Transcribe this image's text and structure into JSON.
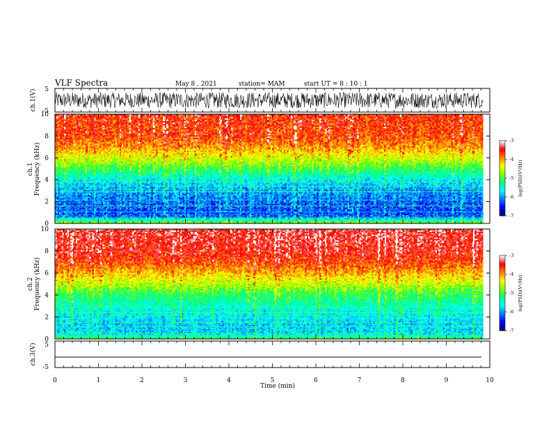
{
  "header": {
    "title": "VLF Spectra",
    "date": "May 8 , 2021",
    "station": "station= MAM",
    "start": "start  UT =   8 : 10 : 1"
  },
  "chart_data": [
    {
      "type": "line",
      "panel": "ch1-waveform",
      "ylabel": "ch.1(V)",
      "ylim": [
        -5,
        5
      ],
      "yticks": [
        "5",
        "-5"
      ],
      "xlim": [
        0,
        10
      ],
      "description": "dense black noise waveform, amplitude roughly ±3 V"
    },
    {
      "type": "heatmap",
      "panel": "ch1-spectrogram",
      "ylabel": "ch.1\nFrequency (kHz)",
      "ylabel_line1": "ch.1",
      "ylabel_line2": "Frequency (kHz)",
      "ylim": [
        0,
        10
      ],
      "yticks": [
        "0",
        "2",
        "4",
        "6",
        "8",
        "10"
      ],
      "xlim": [
        0,
        9.85
      ],
      "colorbar": {
        "label": "log(PSD)(V²/Hz)",
        "range": [
          -7,
          -3
        ],
        "ticks": [
          "-3",
          "-4",
          "-5",
          "-6",
          "-7"
        ]
      },
      "levels": [
        {
          "f": 0.0,
          "v": -4.7
        },
        {
          "f": 0.3,
          "v": -5.2
        },
        {
          "f": 0.6,
          "v": -6.1
        },
        {
          "f": 1.0,
          "v": -6.3
        },
        {
          "f": 2.0,
          "v": -6.2
        },
        {
          "f": 3.0,
          "v": -6.0
        },
        {
          "f": 4.0,
          "v": -5.7
        },
        {
          "f": 4.8,
          "v": -5.2
        },
        {
          "f": 5.5,
          "v": -4.8
        },
        {
          "f": 6.2,
          "v": -4.4
        },
        {
          "f": 7.0,
          "v": -4.0
        },
        {
          "f": 8.0,
          "v": -3.7
        },
        {
          "f": 10.0,
          "v": -3.6
        }
      ],
      "lines_kHz": [
        0.25,
        0.5,
        1.05,
        1.6,
        2.15,
        2.9,
        3.4,
        3.8
      ]
    },
    {
      "type": "heatmap",
      "panel": "ch2-spectrogram",
      "ylabel_line1": "ch.2",
      "ylabel_line2": "Frequency (kHz)",
      "ylim": [
        0,
        10
      ],
      "yticks": [
        "0",
        "2",
        "4",
        "6",
        "8",
        "10"
      ],
      "xlim": [
        0,
        9.85
      ],
      "colorbar": {
        "label": "log(PSD)(V²/Hz)",
        "range": [
          -7,
          -3
        ],
        "ticks": [
          "-3",
          "-4",
          "-5",
          "-6",
          "-7"
        ]
      },
      "levels": [
        {
          "f": 0.0,
          "v": -4.9
        },
        {
          "f": 0.3,
          "v": -5.4
        },
        {
          "f": 0.6,
          "v": -5.8
        },
        {
          "f": 1.5,
          "v": -5.8
        },
        {
          "f": 2.5,
          "v": -5.6
        },
        {
          "f": 3.5,
          "v": -5.3
        },
        {
          "f": 4.3,
          "v": -5.0
        },
        {
          "f": 5.0,
          "v": -4.6
        },
        {
          "f": 6.0,
          "v": -4.1
        },
        {
          "f": 7.0,
          "v": -3.7
        },
        {
          "f": 8.0,
          "v": -3.45
        },
        {
          "f": 10.0,
          "v": -3.35
        }
      ],
      "lines_kHz": [
        0.25,
        0.55,
        1.1,
        1.5,
        1.9,
        2.4,
        2.9
      ]
    },
    {
      "type": "line",
      "panel": "ch3-waveform",
      "ylabel": "ch.3(V)",
      "ylim": [
        -5,
        5
      ],
      "yticks": [
        "5",
        "-5"
      ],
      "xlim": [
        0,
        10
      ],
      "series": [
        {
          "x": [
            0,
            9.85
          ],
          "y": [
            -1.5,
            -1.5
          ]
        }
      ]
    }
  ],
  "xaxis": {
    "label": "Time  (min)",
    "ticks": [
      "0",
      "1",
      "2",
      "3",
      "4",
      "5",
      "6",
      "7",
      "8",
      "9",
      "10"
    ]
  },
  "colors": {
    "colormap": [
      "#000080",
      "#0000ff",
      "#0080ff",
      "#00ffff",
      "#00ff80",
      "#80ff00",
      "#ffff00",
      "#ff8000",
      "#ff0000",
      "#ffffff"
    ]
  }
}
